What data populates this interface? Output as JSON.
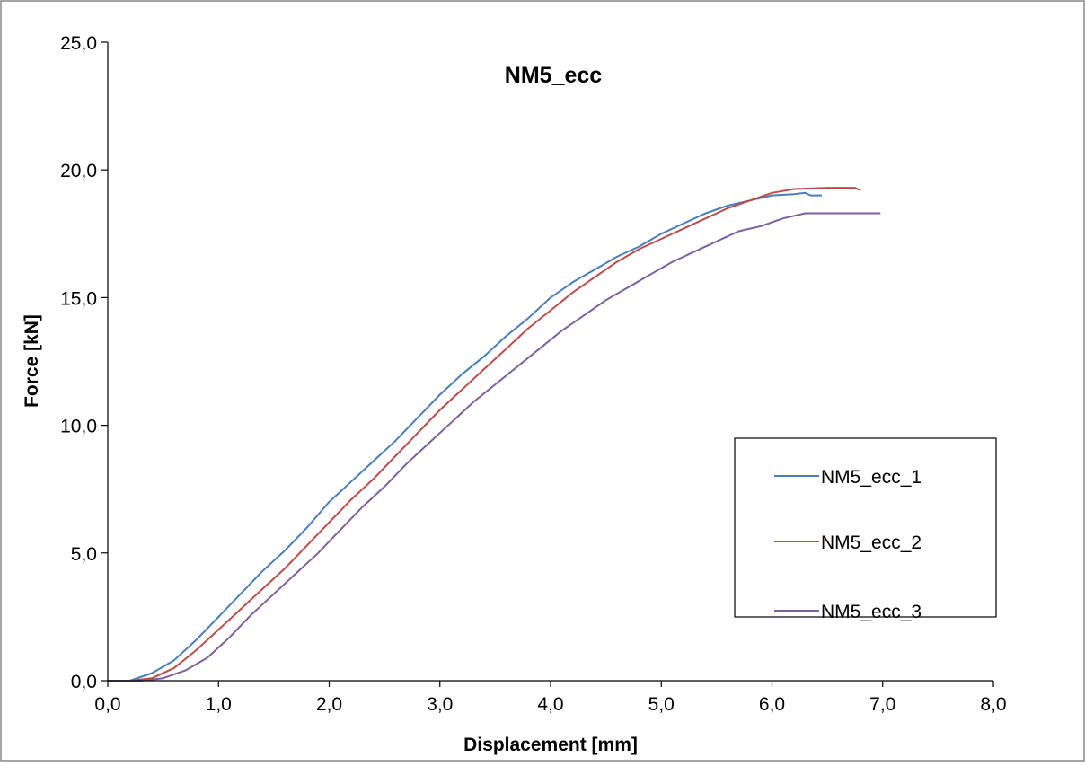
{
  "chart_data": {
    "type": "line",
    "title": "NM5_ecc",
    "xlabel": "Displacement [mm]",
    "ylabel": "Force [kN]",
    "xlim": [
      0,
      8
    ],
    "ylim": [
      0,
      25
    ],
    "x_ticks": [
      "0,0",
      "1,0",
      "2,0",
      "3,0",
      "4,0",
      "5,0",
      "6,0",
      "7,0",
      "8,0"
    ],
    "y_ticks": [
      "0,0",
      "5,0",
      "10,0",
      "15,0",
      "20,0",
      "25,0"
    ],
    "grid": false,
    "legend_position": "right",
    "series": [
      {
        "name": "NM5_ecc_1",
        "color": "#4a7ebb",
        "points": [
          [
            0.0,
            0.0
          ],
          [
            0.2,
            0.0
          ],
          [
            0.4,
            0.3
          ],
          [
            0.6,
            0.8
          ],
          [
            0.8,
            1.6
          ],
          [
            1.0,
            2.5
          ],
          [
            1.2,
            3.4
          ],
          [
            1.4,
            4.3
          ],
          [
            1.6,
            5.1
          ],
          [
            1.8,
            6.0
          ],
          [
            2.0,
            7.0
          ],
          [
            2.2,
            7.8
          ],
          [
            2.4,
            8.6
          ],
          [
            2.6,
            9.4
          ],
          [
            2.8,
            10.3
          ],
          [
            3.0,
            11.2
          ],
          [
            3.2,
            12.0
          ],
          [
            3.4,
            12.7
          ],
          [
            3.6,
            13.5
          ],
          [
            3.8,
            14.2
          ],
          [
            4.0,
            15.0
          ],
          [
            4.2,
            15.6
          ],
          [
            4.4,
            16.1
          ],
          [
            4.6,
            16.6
          ],
          [
            4.8,
            17.0
          ],
          [
            5.0,
            17.5
          ],
          [
            5.2,
            17.9
          ],
          [
            5.4,
            18.3
          ],
          [
            5.6,
            18.6
          ],
          [
            5.8,
            18.8
          ],
          [
            6.0,
            19.0
          ],
          [
            6.2,
            19.05
          ],
          [
            6.3,
            19.1
          ],
          [
            6.35,
            19.0
          ],
          [
            6.45,
            19.0
          ]
        ]
      },
      {
        "name": "NM5_ecc_2",
        "color": "#be4b48",
        "points": [
          [
            0.0,
            0.0
          ],
          [
            0.2,
            0.0
          ],
          [
            0.4,
            0.1
          ],
          [
            0.6,
            0.5
          ],
          [
            0.8,
            1.2
          ],
          [
            1.0,
            2.0
          ],
          [
            1.2,
            2.8
          ],
          [
            1.4,
            3.6
          ],
          [
            1.6,
            4.4
          ],
          [
            1.8,
            5.3
          ],
          [
            2.0,
            6.2
          ],
          [
            2.2,
            7.1
          ],
          [
            2.4,
            7.9
          ],
          [
            2.6,
            8.8
          ],
          [
            2.8,
            9.7
          ],
          [
            3.0,
            10.6
          ],
          [
            3.2,
            11.4
          ],
          [
            3.4,
            12.2
          ],
          [
            3.6,
            13.0
          ],
          [
            3.8,
            13.8
          ],
          [
            4.0,
            14.5
          ],
          [
            4.2,
            15.2
          ],
          [
            4.4,
            15.8
          ],
          [
            4.6,
            16.4
          ],
          [
            4.8,
            16.9
          ],
          [
            5.0,
            17.3
          ],
          [
            5.2,
            17.7
          ],
          [
            5.4,
            18.1
          ],
          [
            5.6,
            18.5
          ],
          [
            5.8,
            18.8
          ],
          [
            6.0,
            19.1
          ],
          [
            6.2,
            19.25
          ],
          [
            6.5,
            19.3
          ],
          [
            6.75,
            19.3
          ],
          [
            6.8,
            19.2
          ]
        ]
      },
      {
        "name": "NM5_ecc_3",
        "color": "#7d60a0",
        "points": [
          [
            0.0,
            0.0
          ],
          [
            0.3,
            0.0
          ],
          [
            0.5,
            0.1
          ],
          [
            0.7,
            0.4
          ],
          [
            0.9,
            0.9
          ],
          [
            1.1,
            1.7
          ],
          [
            1.3,
            2.6
          ],
          [
            1.5,
            3.4
          ],
          [
            1.7,
            4.2
          ],
          [
            1.9,
            5.0
          ],
          [
            2.1,
            5.9
          ],
          [
            2.3,
            6.8
          ],
          [
            2.5,
            7.6
          ],
          [
            2.7,
            8.5
          ],
          [
            2.9,
            9.3
          ],
          [
            3.1,
            10.1
          ],
          [
            3.3,
            10.9
          ],
          [
            3.5,
            11.6
          ],
          [
            3.7,
            12.3
          ],
          [
            3.9,
            13.0
          ],
          [
            4.1,
            13.7
          ],
          [
            4.3,
            14.3
          ],
          [
            4.5,
            14.9
          ],
          [
            4.7,
            15.4
          ],
          [
            4.9,
            15.9
          ],
          [
            5.1,
            16.4
          ],
          [
            5.3,
            16.8
          ],
          [
            5.5,
            17.2
          ],
          [
            5.7,
            17.6
          ],
          [
            5.9,
            17.8
          ],
          [
            6.1,
            18.1
          ],
          [
            6.3,
            18.3
          ],
          [
            6.5,
            18.3
          ],
          [
            6.98,
            18.3
          ]
        ]
      }
    ]
  }
}
